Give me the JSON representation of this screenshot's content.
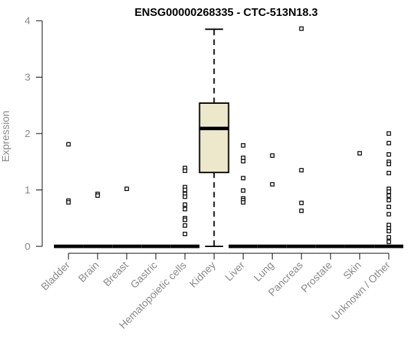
{
  "chart_data": {
    "type": "box",
    "title": "ENSG00000268335 - CTC-513N18.3",
    "ylabel": "Expression",
    "xlabel": "",
    "ylim": [
      0,
      4
    ],
    "yticks": [
      0,
      1,
      2,
      3,
      4
    ],
    "categories": [
      "Bladder",
      "Brain",
      "Breast",
      "Gastric",
      "Hematopoietic cells",
      "Kidney",
      "Liver",
      "Lung",
      "Pancreas",
      "Prostate",
      "Skin",
      "Unknown / Other"
    ],
    "boxes": [
      {
        "category": "Bladder",
        "q1": 0,
        "median": 0,
        "q3": 0,
        "whisker_low": 0,
        "whisker_high": 0,
        "outliers": [
          1.81,
          0.81,
          0.78
        ]
      },
      {
        "category": "Brain",
        "q1": 0,
        "median": 0,
        "q3": 0,
        "whisker_low": 0,
        "whisker_high": 0,
        "outliers": [
          0.93,
          0.9
        ]
      },
      {
        "category": "Breast",
        "q1": 0,
        "median": 0,
        "q3": 0,
        "whisker_low": 0,
        "whisker_high": 0,
        "outliers": [
          1.02
        ]
      },
      {
        "category": "Gastric",
        "q1": 0,
        "median": 0,
        "q3": 0,
        "whisker_low": 0,
        "whisker_high": 0,
        "outliers": []
      },
      {
        "category": "Hematopoietic cells",
        "q1": 0,
        "median": 0,
        "q3": 0,
        "whisker_low": 0,
        "whisker_high": 0,
        "outliers": [
          1.39,
          1.34,
          1.05,
          1.0,
          0.93,
          0.88,
          0.74,
          0.66,
          0.5,
          0.47,
          0.37,
          0.22
        ]
      },
      {
        "category": "Kidney",
        "q1": 1.31,
        "median": 2.09,
        "q3": 2.54,
        "whisker_low": 0,
        "whisker_high": 3.85,
        "outliers": []
      },
      {
        "category": "Liver",
        "q1": 0,
        "median": 0,
        "q3": 0,
        "whisker_low": 0,
        "whisker_high": 0,
        "outliers": [
          1.79,
          1.57,
          1.51,
          1.21,
          0.99,
          0.85,
          0.82,
          0.78
        ]
      },
      {
        "category": "Lung",
        "q1": 0,
        "median": 0,
        "q3": 0,
        "whisker_low": 0,
        "whisker_high": 0,
        "outliers": [
          1.61,
          1.1
        ]
      },
      {
        "category": "Pancreas",
        "q1": 0,
        "median": 0,
        "q3": 0,
        "whisker_low": 0,
        "whisker_high": 0,
        "outliers": [
          3.86,
          1.35,
          0.77,
          0.63
        ]
      },
      {
        "category": "Prostate",
        "q1": 0,
        "median": 0,
        "q3": 0,
        "whisker_low": 0,
        "whisker_high": 0,
        "outliers": []
      },
      {
        "category": "Skin",
        "q1": 0,
        "median": 0,
        "q3": 0,
        "whisker_low": 0,
        "whisker_high": 0,
        "outliers": [
          1.65
        ]
      },
      {
        "category": "Unknown / Other",
        "q1": 0,
        "median": 0,
        "q3": 0,
        "whisker_low": 0,
        "whisker_high": 0,
        "outliers": [
          2.0,
          1.83,
          1.63,
          1.5,
          1.46,
          1.3,
          1.02,
          0.97,
          0.9,
          0.82,
          0.7,
          0.57,
          0.38,
          0.32,
          0.27,
          0.16,
          0.08
        ]
      }
    ],
    "colors": {
      "box_fill": "#ede7cc",
      "stroke": "#000000",
      "axis_text": "#8a8a8a"
    },
    "grid": false
  }
}
